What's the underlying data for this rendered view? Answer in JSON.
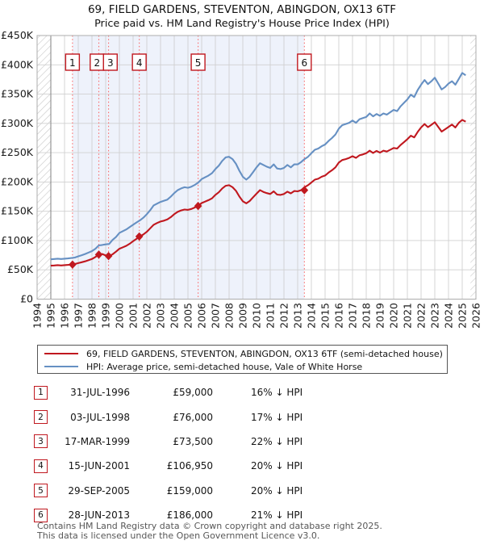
{
  "title": {
    "line1": "69, FIELD GARDENS, STEVENTON, ABINGDON, OX13 6TF",
    "line2": "Price paid vs. HM Land Registry's House Price Index (HPI)"
  },
  "colors": {
    "price_paid_line": "#c0181f",
    "hpi_line": "#6690c3",
    "sale_dashed_line": "#fb6a6a",
    "ownership_shade": "#eef2fb",
    "gridline": "#d0d0d0",
    "data_start_line": "#8c8c8c",
    "plot_border": "#adadad",
    "hatch_line": "#c8c8c8",
    "marker_box_border": "#c0181f"
  },
  "chart_data": {
    "type": "line",
    "x_axis": {
      "min": 1994,
      "max": 2026,
      "tick_step": 1,
      "tick_labels": [
        "1994",
        "1995",
        "1996",
        "1997",
        "1998",
        "1999",
        "2000",
        "2001",
        "2002",
        "2003",
        "2004",
        "2005",
        "2006",
        "2007",
        "2008",
        "2009",
        "2010",
        "2011",
        "2012",
        "2013",
        "2014",
        "2015",
        "2016",
        "2017",
        "2018",
        "2019",
        "2020",
        "2021",
        "2022",
        "2023",
        "2024",
        "2025",
        "2026"
      ]
    },
    "y_axis": {
      "min": 0,
      "max": 450000,
      "tick_step": 50000,
      "tick_labels": [
        "£0",
        "£50K",
        "£100K",
        "£150K",
        "£200K",
        "£250K",
        "£300K",
        "£350K",
        "£400K",
        "£450K"
      ]
    },
    "ownership_shade_region": {
      "from": 1996.58,
      "to": 2013.49
    },
    "no_data_hatch_regions": [
      {
        "from": 1994,
        "to": 1995
      },
      {
        "from": 2025.6,
        "to": 2026
      }
    ],
    "series": [
      {
        "name": "price-paid",
        "label": "69, FIELD GARDENS, STEVENTON, ABINGDON, OX13 6TF (semi-detached house)",
        "color": "#c0181f",
        "start": 1995,
        "step": 0.25,
        "values_gbp_k": [
          57,
          57.5,
          58,
          57.5,
          58,
          58.5,
          59,
          60,
          61.5,
          63,
          64.5,
          66.5,
          68.5,
          72,
          76,
          77,
          74.5,
          73.5,
          76.5,
          81,
          86,
          88.5,
          91,
          94.5,
          99,
          103,
          107,
          110.5,
          115,
          121,
          127,
          130,
          132.5,
          134,
          136,
          140,
          145,
          149,
          151.5,
          153,
          152.5,
          154,
          156.5,
          159.5,
          164,
          166.5,
          169,
          172,
          178,
          182.5,
          189,
          193.5,
          194.5,
          191,
          185,
          175,
          167,
          163.5,
          167.5,
          174,
          180,
          186,
          183,
          181,
          179.5,
          184,
          178.5,
          178,
          179.5,
          183.5,
          180.5,
          184.5,
          184,
          186,
          191,
          194.5,
          199,
          204,
          205.5,
          209,
          211,
          216,
          220,
          225,
          233,
          237.5,
          239,
          241,
          244,
          241,
          245.5,
          247,
          249,
          253.5,
          249.5,
          253,
          250,
          253.5,
          252,
          255,
          258,
          257,
          263,
          268,
          273,
          279,
          276,
          285.5,
          293,
          299,
          293.5,
          297.5,
          302,
          294,
          286,
          290,
          294,
          298,
          293,
          301,
          306,
          303
        ]
      },
      {
        "name": "hpi",
        "label": "HPI: Average price, semi-detached house, Vale of White Horse",
        "color": "#6690c3",
        "start": 1995,
        "step": 0.25,
        "values_gbp_k": [
          68,
          68.5,
          69,
          68.5,
          69,
          69.5,
          70.2,
          71,
          73,
          75,
          77,
          79.5,
          82,
          86,
          91.6,
          92.5,
          93.5,
          94.2,
          101,
          106,
          113,
          116,
          119,
          123,
          127,
          131,
          134.5,
          139,
          145,
          152,
          160,
          163,
          166,
          168,
          170,
          175,
          181,
          186,
          189,
          191,
          190,
          192,
          195,
          199,
          205,
          208,
          211,
          215,
          222,
          228,
          236,
          242,
          243,
          239,
          231,
          219,
          209,
          204,
          209,
          217,
          225,
          232,
          229,
          226,
          224,
          230,
          223,
          222,
          224,
          229,
          225,
          230,
          230,
          234,
          239,
          243,
          249,
          255,
          257,
          261,
          264,
          270,
          275,
          281,
          291,
          297,
          299,
          301,
          305,
          301,
          307,
          309,
          311,
          317,
          312,
          316,
          313,
          317,
          315,
          319,
          323,
          321,
          329,
          335,
          341,
          349,
          345,
          357,
          366,
          374,
          367,
          372,
          378,
          368,
          358,
          362,
          368,
          372,
          366,
          376,
          386,
          382
        ]
      }
    ],
    "sales_markers": [
      {
        "n": "1",
        "x": 1996.58,
        "price_gbp_k": 59
      },
      {
        "n": "2",
        "x": 1998.5,
        "price_gbp_k": 76
      },
      {
        "n": "3",
        "x": 1999.21,
        "price_gbp_k": 73.5
      },
      {
        "n": "4",
        "x": 2001.45,
        "price_gbp_k": 106.95
      },
      {
        "n": "5",
        "x": 2005.74,
        "price_gbp_k": 159
      },
      {
        "n": "6",
        "x": 2013.49,
        "price_gbp_k": 186
      }
    ]
  },
  "legend": {
    "items": [
      {
        "label": "69, FIELD GARDENS, STEVENTON, ABINGDON, OX13 6TF (semi-detached house)",
        "color": "#c0181f"
      },
      {
        "label": "HPI: Average price, semi-detached house, Vale of White Horse",
        "color": "#6690c3"
      }
    ]
  },
  "sales_table": {
    "rows": [
      {
        "n": "1",
        "date": "31-JUL-1996",
        "price": "£59,000",
        "vs_hpi": "16% ↓ HPI"
      },
      {
        "n": "2",
        "date": "03-JUL-1998",
        "price": "£76,000",
        "vs_hpi": "17% ↓ HPI"
      },
      {
        "n": "3",
        "date": "17-MAR-1999",
        "price": "£73,500",
        "vs_hpi": "22% ↓ HPI"
      },
      {
        "n": "4",
        "date": "15-JUN-2001",
        "price": "£106,950",
        "vs_hpi": "20% ↓ HPI"
      },
      {
        "n": "5",
        "date": "29-SEP-2005",
        "price": "£159,000",
        "vs_hpi": "20% ↓ HPI"
      },
      {
        "n": "6",
        "date": "28-JUN-2013",
        "price": "£186,000",
        "vs_hpi": "21% ↓ HPI"
      }
    ]
  },
  "footer": {
    "line1": "Contains HM Land Registry data © Crown copyright and database right 2025.",
    "line2": "This data is licensed under the Open Government Licence v3.0."
  }
}
